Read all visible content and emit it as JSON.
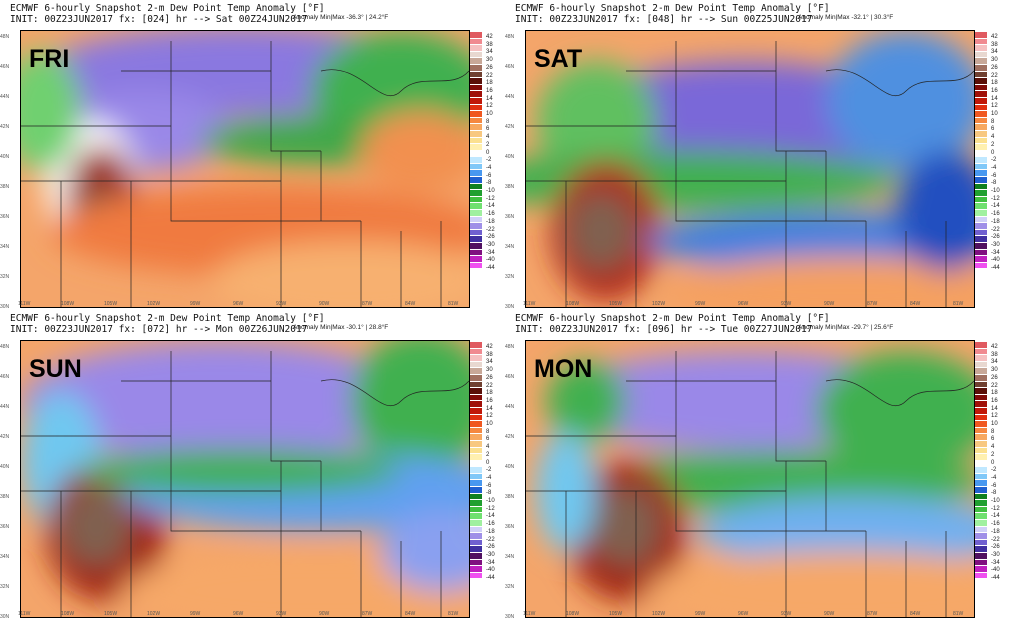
{
  "panels": [
    {
      "day": "FRI",
      "title": "ECMWF 6-hourly Snapshot 2-m Dew Point Temp Anomaly [°F]",
      "init": "INIT: 00Z23JUN2017 fx: [024] hr --> Sat 00Z24JUN2017",
      "minmax": "Anomaly Min|Max -36.3° | 24.2°F"
    },
    {
      "day": "SAT",
      "title": "ECMWF 6-hourly Snapshot 2-m Dew Point Temp Anomaly [°F]",
      "init": "INIT: 00Z23JUN2017 fx: [048] hr --> Sun 00Z25JUN2017",
      "minmax": "Anomaly Min|Max -32.1° | 30.3°F"
    },
    {
      "day": "SUN",
      "title": "ECMWF 6-hourly Snapshot 2-m Dew Point Temp Anomaly [°F]",
      "init": "INIT: 00Z23JUN2017 fx: [072] hr --> Mon 00Z26JUN2017",
      "minmax": "Anomaly Min|Max -30.1° | 28.8°F"
    },
    {
      "day": "MON",
      "title": "ECMWF 6-hourly Snapshot 2-m Dew Point Temp Anomaly [°F]",
      "init": "INIT: 00Z23JUN2017 fx: [096] hr --> Tue 00Z27JUN2017",
      "minmax": "Anomaly Min|Max -29.7° | 25.6°F"
    }
  ],
  "colorbar": {
    "labels": [
      "42",
      "38",
      "34",
      "30",
      "26",
      "22",
      "18",
      "16",
      "14",
      "12",
      "10",
      "8",
      "6",
      "4",
      "2",
      "0",
      "-2",
      "-4",
      "-6",
      "-8",
      "-10",
      "-12",
      "-14",
      "-16",
      "-18",
      "-22",
      "-26",
      "-30",
      "-34",
      "-40",
      "-44"
    ],
    "colors": [
      "#e05a60",
      "#f08a90",
      "#f5c0c0",
      "#e8d8d0",
      "#c8a898",
      "#a07060",
      "#704030",
      "#5a1008",
      "#800c08",
      "#a01008",
      "#c01808",
      "#e03010",
      "#f05820",
      "#f58840",
      "#f7a860",
      "#f8c880",
      "#fbe090",
      "#fff0b0",
      "#ffffff",
      "#c0e8ff",
      "#80c8f8",
      "#4898f0",
      "#2060d0",
      "#108020",
      "#20a030",
      "#40c040",
      "#70e070",
      "#a0f0a0",
      "#d0d0f8",
      "#a090e8",
      "#7060d0",
      "#4030a0",
      "#501060",
      "#801080",
      "#c020c0",
      "#f050f0"
    ]
  },
  "lat_labels": [
    "48N",
    "46N",
    "44N",
    "42N",
    "40N",
    "38N",
    "36N",
    "34N",
    "32N",
    "30N"
  ],
  "lon_labels": [
    "111W",
    "108W",
    "105W",
    "102W",
    "99W",
    "96W",
    "93W",
    "90W",
    "87W",
    "84W",
    "81W"
  ]
}
